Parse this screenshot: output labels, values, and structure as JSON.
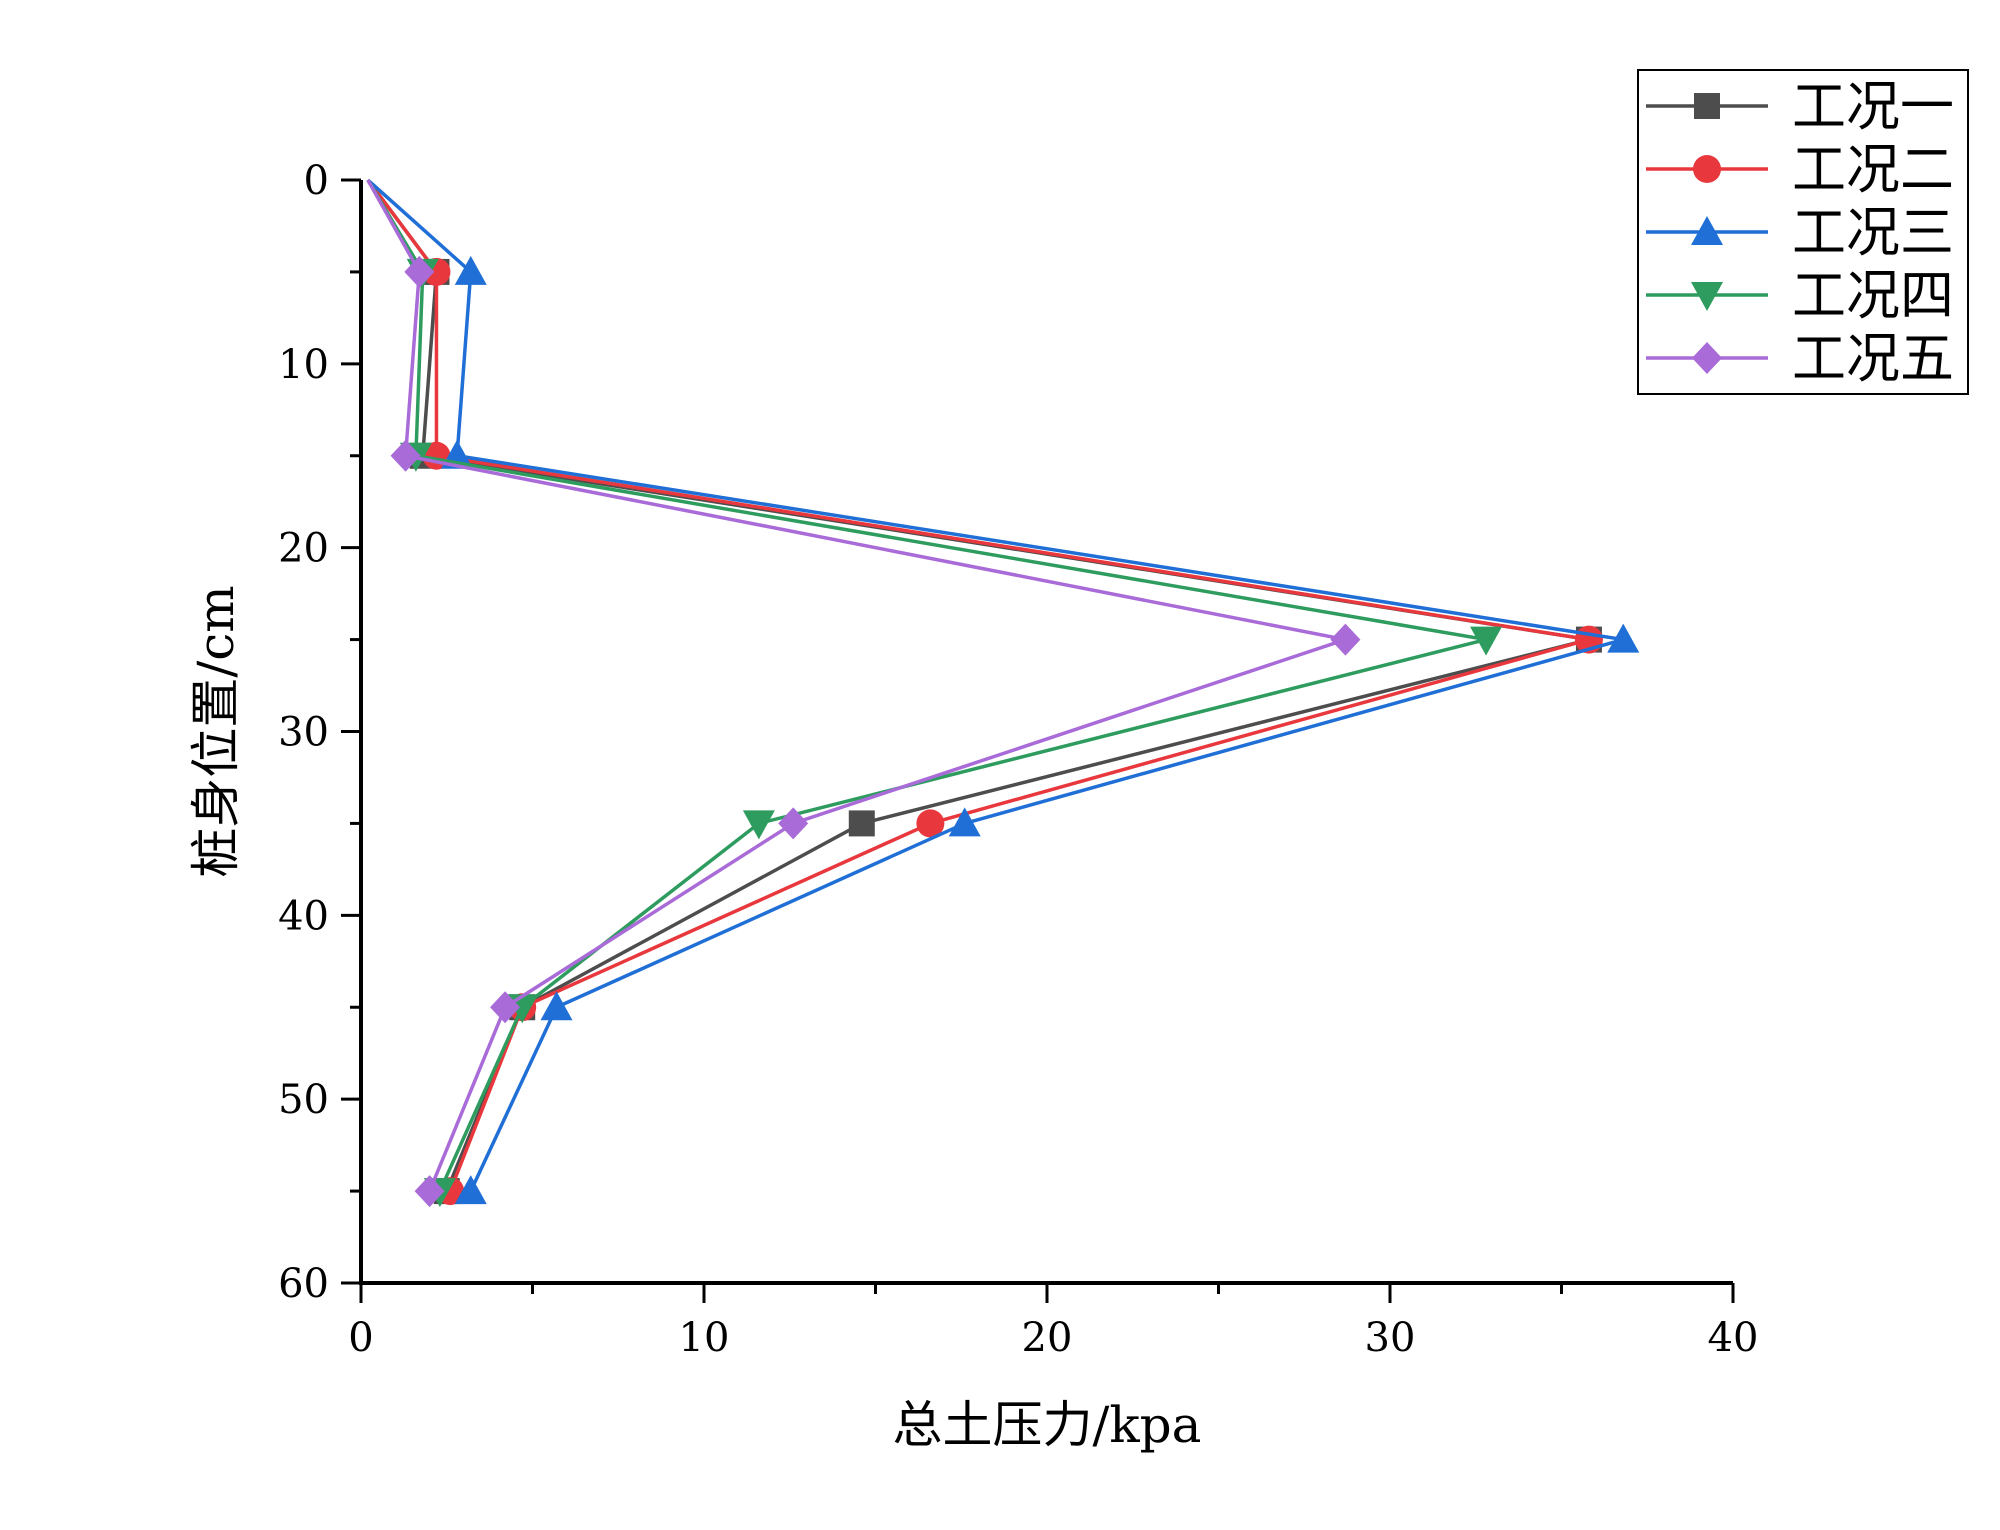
{
  "chart_data": {
    "type": "line",
    "title": "",
    "xlabel": "总土压力/kpa",
    "ylabel": "桩身位置/cm",
    "xlim": [
      0,
      40
    ],
    "ylim": [
      0,
      60
    ],
    "y_inverted": true,
    "xticks": [
      0,
      10,
      20,
      30,
      40
    ],
    "yticks": [
      0,
      10,
      20,
      30,
      40,
      50,
      60
    ],
    "xtick_labels": [
      "0",
      "10",
      "20",
      "30",
      "40"
    ],
    "ytick_labels": [
      "0",
      "10",
      "20",
      "30",
      "40",
      "50",
      "60"
    ],
    "legend_position": "top-right",
    "depths": [
      0,
      5,
      15,
      25,
      35,
      45,
      55
    ],
    "series": [
      {
        "name": "工况一",
        "color": "#4d4d4d",
        "marker": "square",
        "values": [
          0.2,
          2.2,
          1.8,
          35.8,
          14.6,
          4.7,
          2.5
        ]
      },
      {
        "name": "工况二",
        "color": "#e8383d",
        "marker": "circle",
        "values": [
          0.2,
          2.2,
          2.2,
          35.8,
          16.6,
          4.7,
          2.6
        ]
      },
      {
        "name": "工况三",
        "color": "#1f6fd6",
        "marker": "triangle-up",
        "values": [
          0.2,
          3.2,
          2.8,
          36.8,
          17.6,
          5.7,
          3.2
        ]
      },
      {
        "name": "工况四",
        "color": "#2e9c5e",
        "marker": "triangle-down",
        "values": [
          0.2,
          1.8,
          1.6,
          32.8,
          11.6,
          4.7,
          2.3
        ]
      },
      {
        "name": "工况五",
        "color": "#a86bd8",
        "marker": "diamond",
        "values": [
          0.2,
          1.7,
          1.3,
          28.7,
          12.6,
          4.2,
          2.0
        ]
      }
    ]
  }
}
